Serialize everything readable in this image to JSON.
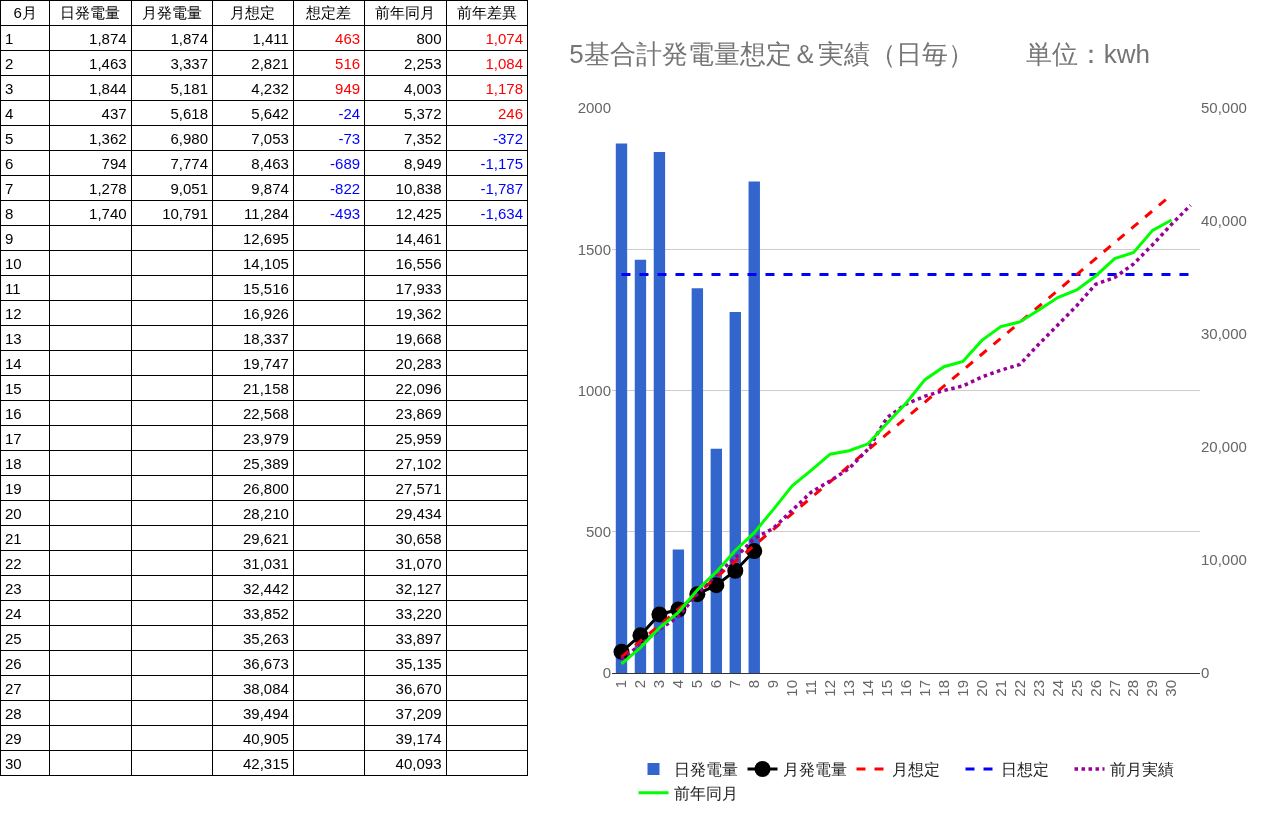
{
  "chart_data": [
    {
      "type": "heatmap",
      "ylabel": "6月",
      "categories": [
        "日発電量",
        "月発電量",
        "月想定",
        "想定差",
        "前年同月",
        "前年差異"
      ],
      "y_categories": [
        "1",
        "2",
        "3",
        "4",
        "5",
        "6",
        "7",
        "8",
        "9",
        "10",
        "11",
        "12",
        "13",
        "14",
        "15",
        "16",
        "17",
        "18",
        "19",
        "20",
        "21",
        "22",
        "23",
        "24",
        "25",
        "26",
        "27",
        "28",
        "29",
        "30"
      ],
      "cells": [
        [
          1874,
          1874,
          1411,
          463,
          800,
          1074
        ],
        [
          1463,
          3337,
          2821,
          516,
          2253,
          1084
        ],
        [
          1844,
          5181,
          4232,
          949,
          4003,
          1178
        ],
        [
          437,
          5618,
          5642,
          -24,
          5372,
          246
        ],
        [
          1362,
          6980,
          7053,
          -73,
          7352,
          -372
        ],
        [
          794,
          7774,
          8463,
          -689,
          8949,
          -1175
        ],
        [
          1278,
          9051,
          9874,
          -822,
          10838,
          -1787
        ],
        [
          1740,
          10791,
          11284,
          -493,
          12425,
          -1634
        ],
        [
          null,
          null,
          12695,
          null,
          14461,
          null
        ],
        [
          null,
          null,
          14105,
          null,
          16556,
          null
        ],
        [
          null,
          null,
          15516,
          null,
          17933,
          null
        ],
        [
          null,
          null,
          16926,
          null,
          19362,
          null
        ],
        [
          null,
          null,
          18337,
          null,
          19668,
          null
        ],
        [
          null,
          null,
          19747,
          null,
          20283,
          null
        ],
        [
          null,
          null,
          21158,
          null,
          22096,
          null
        ],
        [
          null,
          null,
          22568,
          null,
          23869,
          null
        ],
        [
          null,
          null,
          23979,
          null,
          25959,
          null
        ],
        [
          null,
          null,
          25389,
          null,
          27102,
          null
        ],
        [
          null,
          null,
          26800,
          null,
          27571,
          null
        ],
        [
          null,
          null,
          28210,
          null,
          29434,
          null
        ],
        [
          null,
          null,
          29621,
          null,
          30658,
          null
        ],
        [
          null,
          null,
          31031,
          null,
          31070,
          null
        ],
        [
          null,
          null,
          32442,
          null,
          32127,
          null
        ],
        [
          null,
          null,
          33852,
          null,
          33220,
          null
        ],
        [
          null,
          null,
          35263,
          null,
          33897,
          null
        ],
        [
          null,
          null,
          36673,
          null,
          35135,
          null
        ],
        [
          null,
          null,
          38084,
          null,
          36670,
          null
        ],
        [
          null,
          null,
          39494,
          null,
          37209,
          null
        ],
        [
          null,
          null,
          40905,
          null,
          39174,
          null
        ],
        [
          null,
          null,
          42315,
          null,
          40093,
          null
        ]
      ],
      "cell_labels": [
        [
          "1,874",
          "1,874",
          "1,411",
          "463",
          "800",
          "1,074"
        ],
        [
          "1,463",
          "3,337",
          "2,821",
          "516",
          "2,253",
          "1,084"
        ],
        [
          "1,844",
          "5,181",
          "4,232",
          "949",
          "4,003",
          "1,178"
        ],
        [
          "437",
          "5,618",
          "5,642",
          "-24",
          "5,372",
          "246"
        ],
        [
          "1,362",
          "6,980",
          "7,053",
          "-73",
          "7,352",
          "-372"
        ],
        [
          "794",
          "7,774",
          "8,463",
          "-689",
          "8,949",
          "-1,175"
        ],
        [
          "1,278",
          "9,051",
          "9,874",
          "-822",
          "10,838",
          "-1,787"
        ],
        [
          "1,740",
          "10,791",
          "11,284",
          "-493",
          "12,425",
          "-1,634"
        ],
        [
          null,
          null,
          "12,695",
          null,
          "14,461",
          null
        ],
        [
          null,
          null,
          "14,105",
          null,
          "16,556",
          null
        ],
        [
          null,
          null,
          "15,516",
          null,
          "17,933",
          null
        ],
        [
          null,
          null,
          "16,926",
          null,
          "19,362",
          null
        ],
        [
          null,
          null,
          "18,337",
          null,
          "19,668",
          null
        ],
        [
          null,
          null,
          "19,747",
          null,
          "20,283",
          null
        ],
        [
          null,
          null,
          "21,158",
          null,
          "22,096",
          null
        ],
        [
          null,
          null,
          "22,568",
          null,
          "23,869",
          null
        ],
        [
          null,
          null,
          "23,979",
          null,
          "25,959",
          null
        ],
        [
          null,
          null,
          "25,389",
          null,
          "27,102",
          null
        ],
        [
          null,
          null,
          "26,800",
          null,
          "27,571",
          null
        ],
        [
          null,
          null,
          "28,210",
          null,
          "29,434",
          null
        ],
        [
          null,
          null,
          "29,621",
          null,
          "30,658",
          null
        ],
        [
          null,
          null,
          "31,031",
          null,
          "31,070",
          null
        ],
        [
          null,
          null,
          "32,442",
          null,
          "32,127",
          null
        ],
        [
          null,
          null,
          "33,852",
          null,
          "33,220",
          null
        ],
        [
          null,
          null,
          "35,263",
          null,
          "33,897",
          null
        ],
        [
          null,
          null,
          "36,673",
          null,
          "35,135",
          null
        ],
        [
          null,
          null,
          "38,084",
          null,
          "36,670",
          null
        ],
        [
          null,
          null,
          "39,494",
          null,
          "37,209",
          null
        ],
        [
          null,
          null,
          "40,905",
          null,
          "39,174",
          null
        ],
        [
          null,
          null,
          "42,315",
          null,
          "40,093",
          null
        ]
      ]
    },
    {
      "type": "bar",
      "title": "5基合計発電量想定＆実績（日毎）　　単位：kwh",
      "categories": [
        "1",
        "2",
        "3",
        "4",
        "5",
        "6",
        "7",
        "8",
        "9",
        "10",
        "11",
        "12",
        "13",
        "14",
        "15",
        "16",
        "17",
        "18",
        "19",
        "20",
        "21",
        "22",
        "23",
        "24",
        "25",
        "26",
        "27",
        "28",
        "29",
        "30",
        null
      ],
      "ylim": [
        0,
        2000
      ],
      "yticks": [
        0,
        500,
        1000,
        1500,
        2000
      ],
      "y2lim": [
        0,
        50000
      ],
      "y2ticks": [
        0,
        {
          "value": 10000,
          "label": "10,000"
        },
        {
          "value": 20000,
          "label": "20,000"
        },
        {
          "value": 30000,
          "label": "30,000"
        },
        {
          "value": 40000,
          "label": "40,000"
        },
        {
          "value": 50000,
          "label": "50,000"
        }
      ],
      "grid": "y",
      "legend": "bottom",
      "series": [
        {
          "name": "日発電量",
          "type": "bar",
          "color": "#3366cc",
          "values": [
            1874,
            1463,
            1844,
            437,
            1362,
            794,
            1278,
            1740,
            null,
            null,
            null,
            null,
            null,
            null,
            null,
            null,
            null,
            null,
            null,
            null,
            null,
            null,
            null,
            null,
            null,
            null,
            null,
            null,
            null,
            null,
            null
          ]
        },
        {
          "name": "月発電量",
          "type": "line",
          "axis": "y2",
          "color": "#000000",
          "marker": "circle",
          "line_style": "solid",
          "values": [
            1874,
            3337,
            5181,
            5618,
            6980,
            7774,
            9051,
            10791,
            null,
            null,
            null,
            null,
            null,
            null,
            null,
            null,
            null,
            null,
            null,
            null,
            null,
            null,
            null,
            null,
            null,
            null,
            null,
            null,
            null,
            null,
            null
          ]
        },
        {
          "name": "月想定",
          "type": "line",
          "axis": "y2",
          "color": "#ff0000",
          "marker": "none",
          "line_style": "dashed",
          "values": [
            1411,
            2821,
            4232,
            5642,
            7053,
            8463,
            9874,
            11284,
            12695,
            14105,
            15516,
            16926,
            18337,
            19747,
            21158,
            22568,
            23979,
            25389,
            26800,
            28210,
            29621,
            31031,
            32442,
            33852,
            35263,
            36673,
            38084,
            39494,
            40905,
            42315,
            null
          ]
        },
        {
          "name": "日想定",
          "type": "line",
          "color": "#0000ff",
          "marker": "none",
          "line_style": "dashed",
          "values": [
            1411,
            1411,
            1411,
            1411,
            1411,
            1411,
            1411,
            1411,
            1411,
            1411,
            1411,
            1411,
            1411,
            1411,
            1411,
            1411,
            1411,
            1411,
            1411,
            1411,
            1411,
            1411,
            1411,
            1411,
            1411,
            1411,
            1411,
            1411,
            1411,
            1411,
            1411
          ]
        },
        {
          "name": "前月実績",
          "type": "line",
          "axis": "y2",
          "color": "#990099",
          "marker": "none",
          "line_style": "dotted",
          "values": [
            1200,
            2500,
            3850,
            5000,
            7000,
            8700,
            10200,
            11900,
            12800,
            14400,
            16000,
            17000,
            18100,
            19800,
            22600,
            23800,
            24500,
            25000,
            25400,
            26200,
            26800,
            27300,
            29100,
            30800,
            32500,
            34400,
            35000,
            36200,
            37900,
            39700,
            41400
          ]
        },
        {
          "name": "前年同月",
          "type": "line",
          "axis": "y2",
          "color": "#00ff00",
          "marker": "none",
          "line_style": "solid",
          "values": [
            800,
            2253,
            4003,
            5372,
            7352,
            8949,
            10838,
            12425,
            14461,
            16556,
            17933,
            19362,
            19668,
            20283,
            22096,
            23869,
            25959,
            27102,
            27571,
            29434,
            30658,
            31070,
            32127,
            33220,
            33897,
            35135,
            36670,
            37209,
            39174,
            40093,
            null
          ]
        }
      ]
    }
  ]
}
